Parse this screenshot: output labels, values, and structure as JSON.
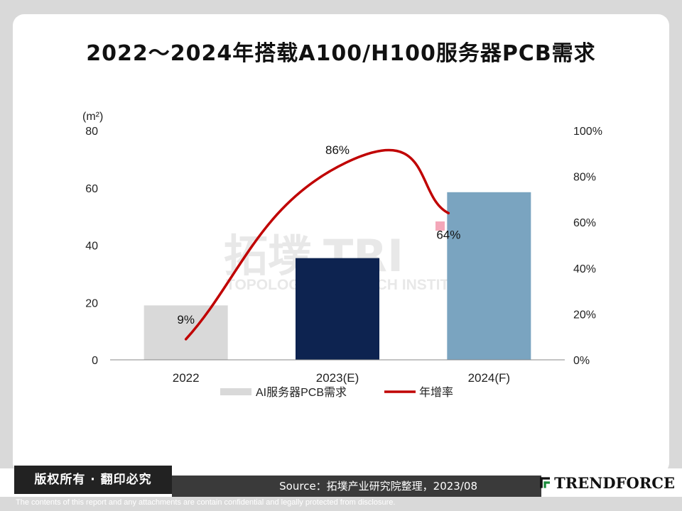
{
  "page": {
    "title": "2022～2024年搭载A100/H100服务器PCB需求",
    "copyright": "版权所有 · 翻印必究",
    "source": "Source：拓墣产业研究院整理，2023/08",
    "logo_text": "TRENDFORCE",
    "disclaimer": "The contents of this report and any attachments are contain confidential and legally protected from disclosure.",
    "watermark_cn": "拓墣",
    "watermark_en": "TOPOLOGY RESEARCH INSTITUTE"
  },
  "chart_data": {
    "type": "bar",
    "categories": [
      "2022",
      "2023(E)",
      "2024(F)"
    ],
    "series": [
      {
        "name": "AI服务器PCB需求",
        "type": "bar",
        "axis": "left",
        "values": [
          19,
          35.5,
          58.5
        ],
        "colors": [
          "#d9d9d9",
          "#0d2350",
          "#7aa4c0"
        ]
      },
      {
        "name": "年增率",
        "type": "line",
        "axis": "right",
        "values": [
          9,
          86,
          64
        ],
        "data_labels": [
          "9%",
          "86%",
          "64%"
        ],
        "color": "#c00000"
      }
    ],
    "y_left": {
      "unit_label": "(m²)",
      "min": 0,
      "max": 80,
      "ticks": [
        "0",
        "20",
        "40",
        "60",
        "80"
      ]
    },
    "y_right": {
      "min": 0,
      "max": 100,
      "ticks": [
        "0%",
        "20%",
        "40%",
        "60%",
        "80%",
        "100%"
      ]
    },
    "grid": false,
    "legend_position": "bottom"
  }
}
